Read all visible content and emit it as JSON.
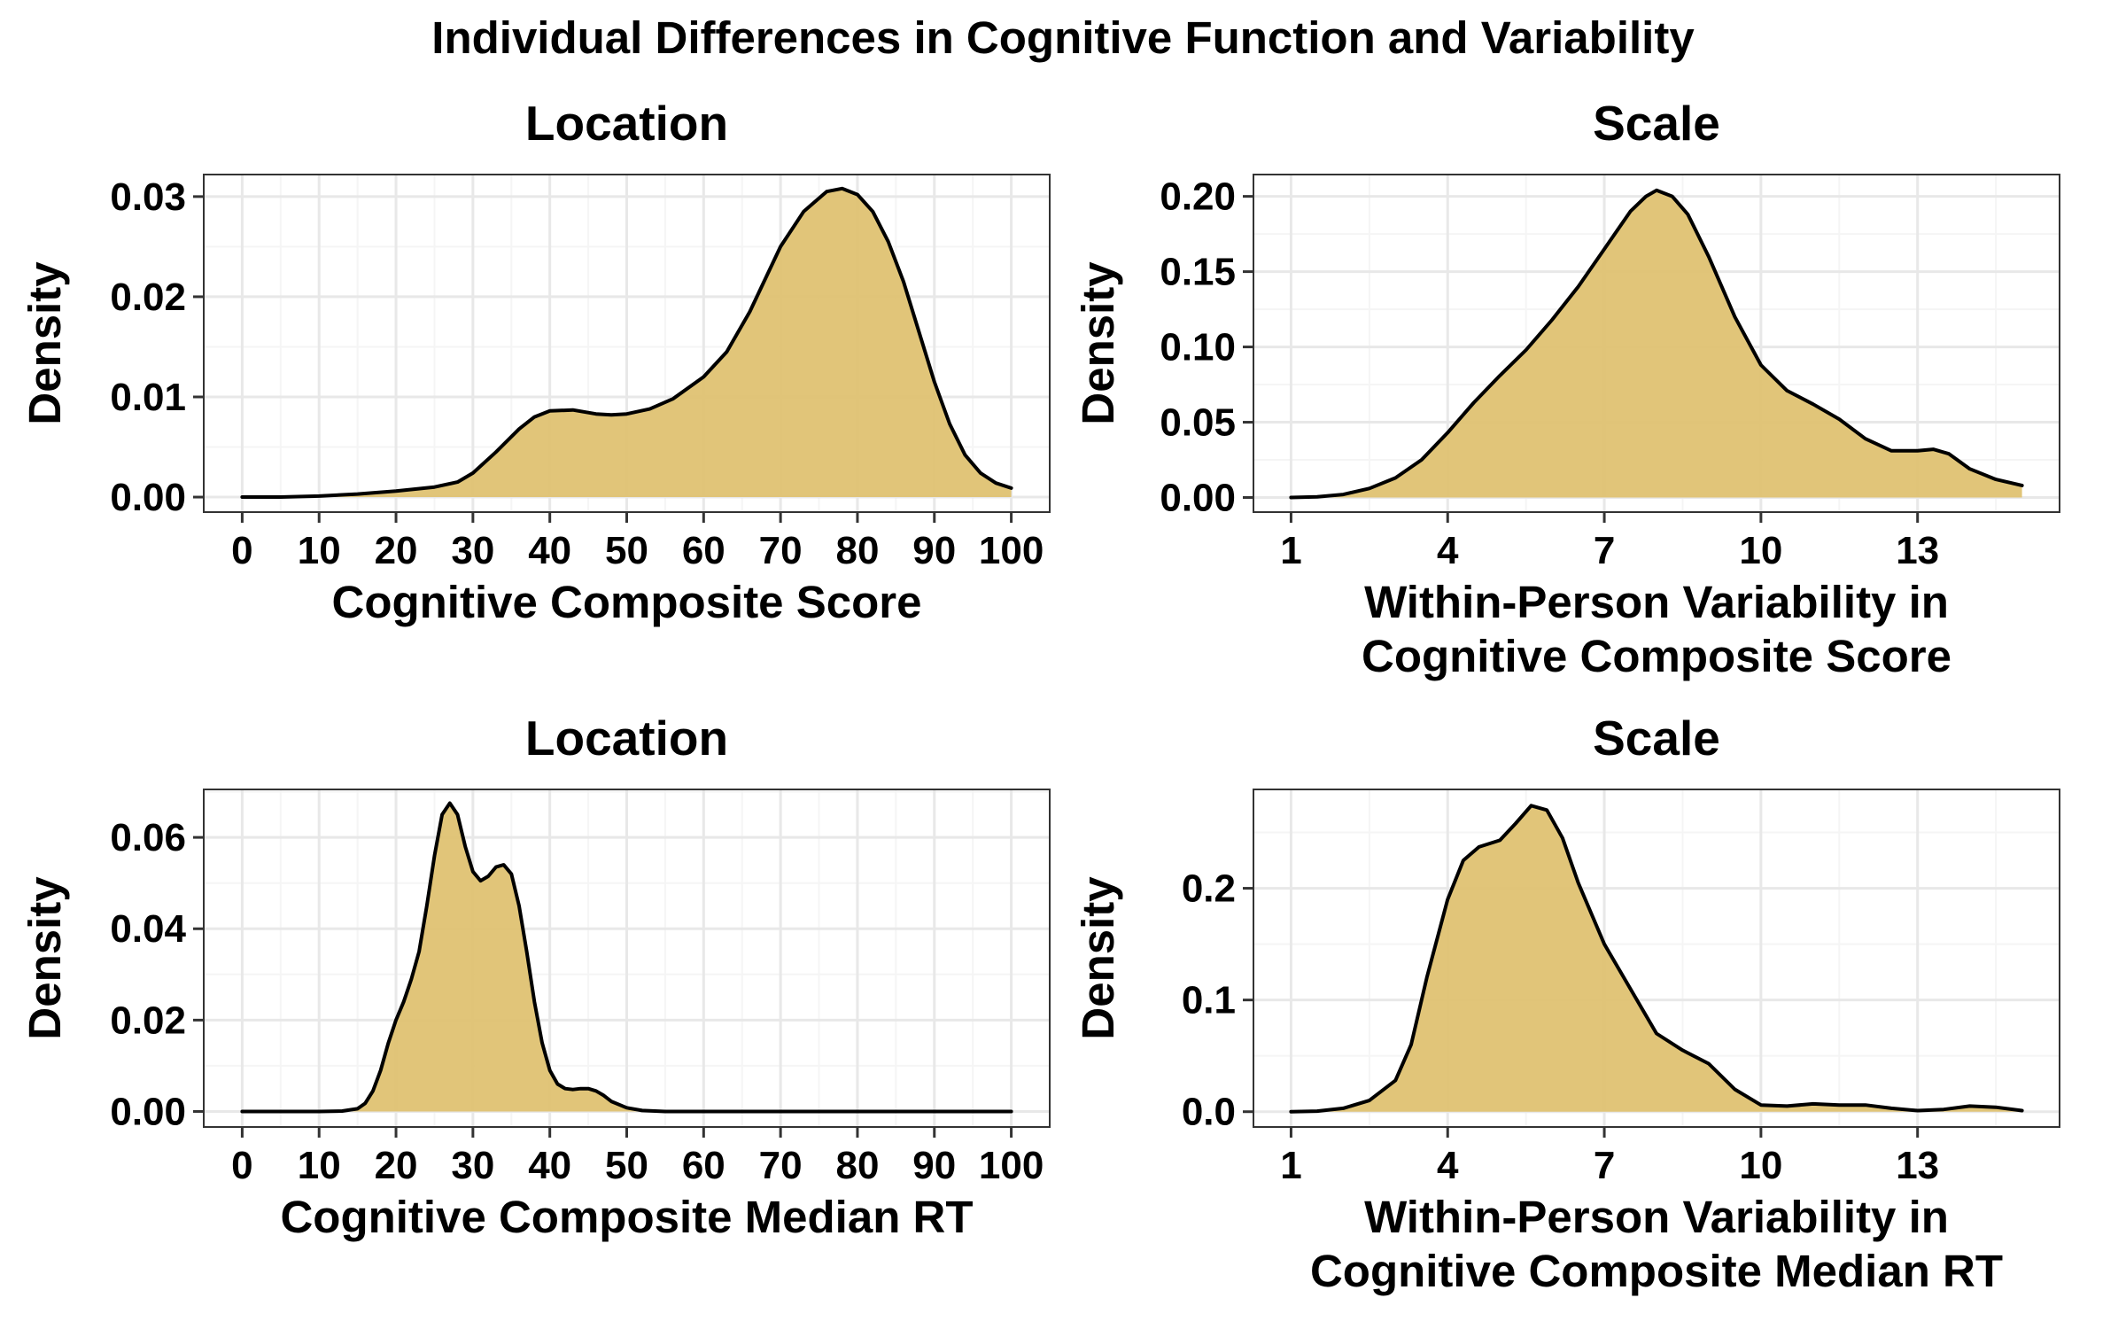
{
  "figure": {
    "title": "Individual Differences in Cognitive Function and Variability"
  },
  "colors": {
    "fill": "#dfc272",
    "line": "#000000",
    "grid_major": "#e8e8e8",
    "grid_minor": "#f5f5f5",
    "panel_border": "#333333"
  },
  "chart_data": [
    {
      "type": "area",
      "title": "Location",
      "xlabel": [
        "Cognitive Composite Score"
      ],
      "ylabel": "Density",
      "xlim": [
        -5,
        105
      ],
      "ylim": [
        -0.0015,
        0.0322
      ],
      "xticks": [
        0,
        10,
        20,
        30,
        40,
        50,
        60,
        70,
        80,
        90,
        100
      ],
      "xtick_labels": [
        "0",
        "10",
        "20",
        "30",
        "40",
        "50",
        "60",
        "70",
        "80",
        "90",
        "100"
      ],
      "yticks": [
        0,
        0.01,
        0.02,
        0.03
      ],
      "ytick_labels": [
        "0.00",
        "0.01",
        "0.02",
        "0.03"
      ],
      "grid": true,
      "x": [
        0,
        5,
        10,
        15,
        20,
        25,
        28,
        30,
        33,
        36,
        38,
        40,
        43,
        46,
        48,
        50,
        53,
        56,
        60,
        63,
        66,
        70,
        73,
        76,
        78,
        80,
        82,
        84,
        86,
        88,
        90,
        92,
        94,
        96,
        98,
        100
      ],
      "y": [
        0.0,
        0.0,
        0.0001,
        0.0003,
        0.0006,
        0.001,
        0.0015,
        0.0024,
        0.0045,
        0.0068,
        0.008,
        0.0086,
        0.0087,
        0.0083,
        0.0082,
        0.0083,
        0.0088,
        0.0098,
        0.012,
        0.0145,
        0.0185,
        0.025,
        0.0285,
        0.0305,
        0.0308,
        0.0302,
        0.0285,
        0.0255,
        0.0215,
        0.0165,
        0.0115,
        0.0073,
        0.0042,
        0.0024,
        0.0014,
        0.0009
      ]
    },
    {
      "type": "area",
      "title": "Scale",
      "xlabel": [
        "Within-Person Variability in",
        "Cognitive Composite Score"
      ],
      "ylabel": "Density",
      "xlim": [
        0.28,
        15.72
      ],
      "ylim": [
        -0.0097,
        0.2145
      ],
      "xticks": [
        1,
        4,
        7,
        10,
        13
      ],
      "xtick_labels": [
        "1",
        "4",
        "7",
        "10",
        "13"
      ],
      "yticks": [
        0,
        0.05,
        0.1,
        0.15,
        0.2
      ],
      "ytick_labels": [
        "0.00",
        "0.05",
        "0.10",
        "0.15",
        "0.20"
      ],
      "grid": true,
      "x": [
        1.0,
        1.5,
        2.0,
        2.5,
        3.0,
        3.5,
        4.0,
        4.5,
        5.0,
        5.5,
        6.0,
        6.5,
        7.0,
        7.5,
        7.8,
        8.0,
        8.3,
        8.6,
        9.0,
        9.5,
        10.0,
        10.5,
        11.0,
        11.5,
        12.0,
        12.5,
        13.0,
        13.3,
        13.6,
        14.0,
        14.5,
        15.0
      ],
      "y": [
        0.0,
        0.0005,
        0.002,
        0.006,
        0.013,
        0.025,
        0.043,
        0.063,
        0.081,
        0.098,
        0.118,
        0.14,
        0.165,
        0.19,
        0.2,
        0.204,
        0.2,
        0.188,
        0.16,
        0.12,
        0.088,
        0.071,
        0.062,
        0.052,
        0.039,
        0.031,
        0.031,
        0.032,
        0.029,
        0.019,
        0.012,
        0.008
      ]
    },
    {
      "type": "area",
      "title": "Location",
      "xlabel": [
        "Cognitive Composite Median RT"
      ],
      "ylabel": "Density",
      "xlim": [
        -5,
        105
      ],
      "ylim": [
        -0.0034,
        0.0705
      ],
      "xticks": [
        0,
        10,
        20,
        30,
        40,
        50,
        60,
        70,
        80,
        90,
        100
      ],
      "xtick_labels": [
        "0",
        "10",
        "20",
        "30",
        "40",
        "50",
        "60",
        "70",
        "80",
        "90",
        "100"
      ],
      "yticks": [
        0,
        0.02,
        0.04,
        0.06
      ],
      "ytick_labels": [
        "0.00",
        "0.02",
        "0.04",
        "0.06"
      ],
      "grid": true,
      "x": [
        0,
        5,
        10,
        13,
        15,
        16,
        17,
        18,
        19,
        20,
        21,
        22,
        23,
        24,
        25,
        26,
        27,
        28,
        29,
        30,
        31,
        32,
        33,
        34,
        35,
        36,
        37,
        38,
        39,
        40,
        41,
        42,
        43,
        44,
        45,
        46,
        47,
        48,
        50,
        52,
        55,
        60,
        70,
        80,
        90,
        100
      ],
      "y": [
        0.0,
        0.0,
        0.0,
        0.0001,
        0.0006,
        0.0018,
        0.0045,
        0.009,
        0.015,
        0.02,
        0.024,
        0.029,
        0.035,
        0.045,
        0.056,
        0.065,
        0.0675,
        0.065,
        0.058,
        0.0525,
        0.0505,
        0.0515,
        0.0535,
        0.054,
        0.052,
        0.045,
        0.035,
        0.024,
        0.015,
        0.009,
        0.006,
        0.005,
        0.0048,
        0.005,
        0.005,
        0.0045,
        0.0035,
        0.0022,
        0.0008,
        0.0002,
        0.0,
        0.0,
        0.0,
        0.0,
        0.0,
        0.0
      ]
    },
    {
      "type": "area",
      "title": "Scale",
      "xlabel": [
        "Within-Person Variability in",
        "Cognitive Composite Median RT"
      ],
      "ylabel": "Density",
      "xlim": [
        0.28,
        15.72
      ],
      "ylim": [
        -0.0137,
        0.2885
      ],
      "xticks": [
        1,
        4,
        7,
        10,
        13
      ],
      "xtick_labels": [
        "1",
        "4",
        "7",
        "10",
        "13"
      ],
      "yticks": [
        0,
        0.1,
        0.2
      ],
      "ytick_labels": [
        "0.0",
        "0.1",
        "0.2"
      ],
      "grid": true,
      "x": [
        1.0,
        1.5,
        2.0,
        2.5,
        3.0,
        3.3,
        3.6,
        4.0,
        4.3,
        4.6,
        5.0,
        5.3,
        5.6,
        5.9,
        6.2,
        6.5,
        7.0,
        7.5,
        8.0,
        8.5,
        9.0,
        9.5,
        10.0,
        10.5,
        11.0,
        11.5,
        12.0,
        12.5,
        13.0,
        13.5,
        14.0,
        14.5,
        15.0
      ],
      "y": [
        0.0,
        0.0005,
        0.003,
        0.01,
        0.028,
        0.06,
        0.12,
        0.19,
        0.225,
        0.237,
        0.243,
        0.258,
        0.274,
        0.27,
        0.245,
        0.205,
        0.15,
        0.11,
        0.07,
        0.055,
        0.043,
        0.02,
        0.006,
        0.005,
        0.007,
        0.006,
        0.006,
        0.003,
        0.001,
        0.002,
        0.005,
        0.004,
        0.001
      ]
    }
  ]
}
